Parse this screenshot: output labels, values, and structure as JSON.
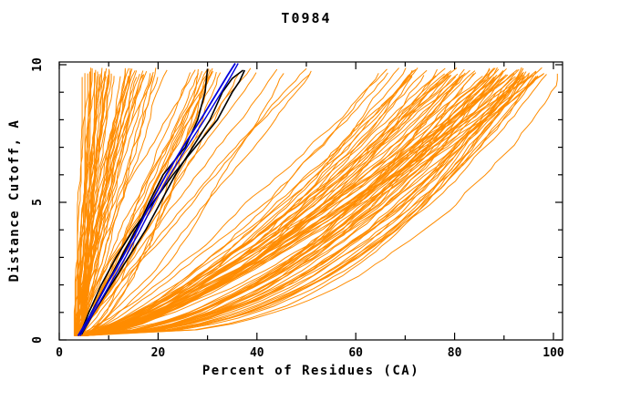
{
  "chart_data": {
    "type": "line",
    "title": "T0984",
    "xlabel": "Percent of Residues (CA)",
    "ylabel": "Distance Cutoff, A",
    "xlim": [
      0,
      101.8
    ],
    "ylim": [
      0,
      10.1
    ],
    "xticks_major": [
      0,
      20,
      40,
      60,
      80,
      100
    ],
    "xticks_minor": [
      10,
      30,
      50,
      70,
      90
    ],
    "yticks_major": [
      0,
      5,
      10
    ],
    "yticks_minor": [
      1,
      2,
      3,
      4,
      6,
      7,
      8,
      9
    ],
    "grid": false,
    "legend": null,
    "colors": {
      "orange_models": "#FF8C00",
      "highlight_black": "#000000",
      "highlight_blue": "#0000DD",
      "axis": "#000000",
      "background": "#FFFFFF"
    },
    "highlight_series": [
      {
        "name": "highlight-black-1",
        "color_key": "highlight_black",
        "width": 1.6,
        "points": [
          [
            4.5,
            0.2
          ],
          [
            6.5,
            1
          ],
          [
            9.5,
            2
          ],
          [
            12.5,
            3
          ],
          [
            15.5,
            4
          ],
          [
            17.2,
            4.6
          ],
          [
            18.2,
            5
          ],
          [
            21,
            6
          ],
          [
            25.5,
            7
          ],
          [
            28,
            8
          ],
          [
            29.5,
            9
          ],
          [
            30,
            9.85
          ]
        ]
      },
      {
        "name": "highlight-black-2",
        "color_key": "highlight_black",
        "width": 1.6,
        "points": [
          [
            4.5,
            0.2
          ],
          [
            7,
            1
          ],
          [
            10.5,
            2
          ],
          [
            14,
            3
          ],
          [
            17.5,
            4
          ],
          [
            20.5,
            5
          ],
          [
            23.5,
            6
          ],
          [
            27,
            7
          ],
          [
            30.5,
            8
          ],
          [
            33,
            9
          ],
          [
            35,
            9.5
          ],
          [
            37.2,
            9.8
          ]
        ]
      },
      {
        "name": "highlight-black-3",
        "color_key": "highlight_black",
        "width": 1.6,
        "points": [
          [
            4.2,
            0.2
          ],
          [
            6,
            1
          ],
          [
            8.5,
            2
          ],
          [
            11.5,
            3
          ],
          [
            15,
            4
          ],
          [
            19,
            5
          ],
          [
            23,
            6
          ],
          [
            27.5,
            7
          ],
          [
            32,
            8
          ],
          [
            35,
            9
          ],
          [
            36.5,
            9.4
          ],
          [
            37.5,
            9.8
          ]
        ]
      },
      {
        "name": "highlight-blue-1",
        "color_key": "highlight_blue",
        "width": 1.8,
        "points": [
          [
            3.8,
            0.15
          ],
          [
            6.6,
            1
          ],
          [
            9.6,
            2
          ],
          [
            12.8,
            3
          ],
          [
            15.8,
            4
          ],
          [
            18.6,
            5
          ],
          [
            21.6,
            6
          ],
          [
            25,
            7
          ],
          [
            28.6,
            8
          ],
          [
            32,
            9
          ],
          [
            34,
            9.6
          ],
          [
            35.6,
            10.05
          ]
        ]
      },
      {
        "name": "highlight-blue-2",
        "color_key": "highlight_blue",
        "width": 1.4,
        "points": [
          [
            4.2,
            0.15
          ],
          [
            7,
            1
          ],
          [
            10.2,
            2
          ],
          [
            13.4,
            3
          ],
          [
            16.4,
            4
          ],
          [
            19.2,
            5
          ],
          [
            22.4,
            6
          ],
          [
            25.8,
            7
          ],
          [
            29.4,
            8
          ],
          [
            32.8,
            9
          ],
          [
            34.8,
            9.6
          ],
          [
            36.2,
            10.05
          ]
        ]
      }
    ],
    "orange_model_families": [
      {
        "name": "steep-left-cluster",
        "count": 45,
        "x_start": [
          3,
          5
        ],
        "x_final": [
          5,
          19
        ],
        "skew_pow": 1.0,
        "shape_exp": [
          0.95,
          1.45
        ],
        "wobble": 0.5
      },
      {
        "name": "mid-fan",
        "count": 26,
        "x_start": [
          3,
          5
        ],
        "x_final": [
          19,
          55
        ],
        "skew_pow": 1.2,
        "shape_exp": [
          0.6,
          1.35
        ],
        "wobble": 0.6
      },
      {
        "name": "right-band",
        "count": 75,
        "x_start": [
          3,
          5
        ],
        "x_final": [
          58,
          98
        ],
        "skew_pow": 0.45,
        "shape_exp": [
          0.45,
          0.8
        ],
        "wobble": 0.9
      },
      {
        "name": "best-models",
        "count": 10,
        "x_start": [
          3,
          5
        ],
        "x_final": [
          96,
          100
        ],
        "skew_pow": 1.0,
        "shape_exp": [
          0.33,
          0.45
        ],
        "wobble": 0.7
      }
    ],
    "orange_line_width": 1.0,
    "y_top_range": [
      9.55,
      9.9
    ],
    "seed": 1234
  }
}
